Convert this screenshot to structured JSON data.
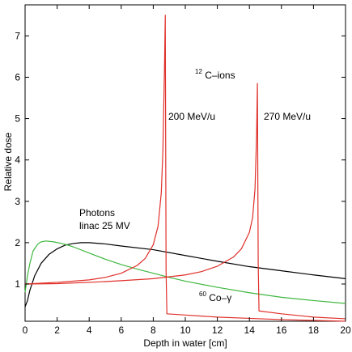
{
  "chart_data": {
    "type": "line",
    "xlabel": "Depth in water [cm]",
    "ylabel": "Relative dose",
    "xlim": [
      0,
      20
    ],
    "ylim": [
      0.1,
      7.75
    ],
    "x_ticks": [
      0,
      2,
      4,
      6,
      8,
      10,
      12,
      14,
      16,
      18,
      20
    ],
    "y_ticks": [
      1,
      2,
      3,
      4,
      5,
      6,
      7
    ],
    "grid": false,
    "legend": "none",
    "series": [
      {
        "color": "#000000",
        "points": [
          [
            0,
            0.45
          ],
          [
            0.15,
            0.6
          ],
          [
            0.3,
            0.85
          ],
          [
            0.6,
            1.2
          ],
          [
            1,
            1.5
          ],
          [
            1.5,
            1.72
          ],
          [
            2,
            1.85
          ],
          [
            2.5,
            1.94
          ],
          [
            3,
            1.98
          ],
          [
            3.5,
            2.0
          ],
          [
            4,
            2.0
          ],
          [
            5,
            1.97
          ],
          [
            6,
            1.92
          ],
          [
            8,
            1.83
          ],
          [
            10,
            1.69
          ],
          [
            12,
            1.55
          ],
          [
            14,
            1.42
          ],
          [
            16,
            1.32
          ],
          [
            18,
            1.22
          ],
          [
            20,
            1.13
          ]
        ]
      },
      {
        "color": "#3fb83f",
        "points": [
          [
            0,
            0.8
          ],
          [
            0.15,
            1.2
          ],
          [
            0.3,
            1.5
          ],
          [
            0.5,
            1.8
          ],
          [
            0.8,
            1.97
          ],
          [
            1,
            2.02
          ],
          [
            1.3,
            2.04
          ],
          [
            1.8,
            2.02
          ],
          [
            2.5,
            1.96
          ],
          [
            3,
            1.9
          ],
          [
            4,
            1.75
          ],
          [
            5,
            1.6
          ],
          [
            6,
            1.47
          ],
          [
            7,
            1.36
          ],
          [
            8,
            1.26
          ],
          [
            9,
            1.16
          ],
          [
            10,
            1.07
          ],
          [
            12,
            0.92
          ],
          [
            14,
            0.79
          ],
          [
            16,
            0.68
          ],
          [
            18,
            0.6
          ],
          [
            20,
            0.53
          ]
        ]
      },
      {
        "color": "#e0302a",
        "name": "200 MeV/u",
        "points": [
          [
            0,
            1.0
          ],
          [
            2,
            1.04
          ],
          [
            4,
            1.1
          ],
          [
            5,
            1.16
          ],
          [
            6,
            1.26
          ],
          [
            7,
            1.45
          ],
          [
            7.5,
            1.62
          ],
          [
            8,
            1.95
          ],
          [
            8.3,
            2.4
          ],
          [
            8.5,
            3.2
          ],
          [
            8.6,
            4.2
          ],
          [
            8.7,
            6.2
          ],
          [
            8.75,
            7.5
          ],
          [
            8.8,
            1.3
          ],
          [
            8.85,
            0.28
          ],
          [
            10,
            0.25
          ],
          [
            12,
            0.2
          ],
          [
            14,
            0.17
          ],
          [
            16,
            0.14
          ],
          [
            18,
            0.12
          ],
          [
            20,
            0.1
          ]
        ]
      },
      {
        "color": "#e0302a",
        "name": "270 MeV/u",
        "points": [
          [
            0,
            1.0
          ],
          [
            2,
            1.01
          ],
          [
            4,
            1.04
          ],
          [
            6,
            1.08
          ],
          [
            8,
            1.13
          ],
          [
            10,
            1.22
          ],
          [
            11,
            1.3
          ],
          [
            12,
            1.43
          ],
          [
            13,
            1.65
          ],
          [
            13.5,
            1.85
          ],
          [
            14,
            2.25
          ],
          [
            14.2,
            2.6
          ],
          [
            14.35,
            3.3
          ],
          [
            14.45,
            4.6
          ],
          [
            14.5,
            5.85
          ],
          [
            14.55,
            1.5
          ],
          [
            14.6,
            0.35
          ],
          [
            16,
            0.28
          ],
          [
            18,
            0.2
          ],
          [
            20,
            0.16
          ]
        ]
      }
    ],
    "annotations": {
      "photons_line1": "Photons",
      "photons_line2": "linac 25 MV",
      "cions_sup": "12",
      "cions_text": "C–ions",
      "label_200": "200 MeV/u",
      "label_270": "270 MeV/u",
      "cobalt_sup": "60",
      "cobalt_text": "Co–γ"
    }
  }
}
